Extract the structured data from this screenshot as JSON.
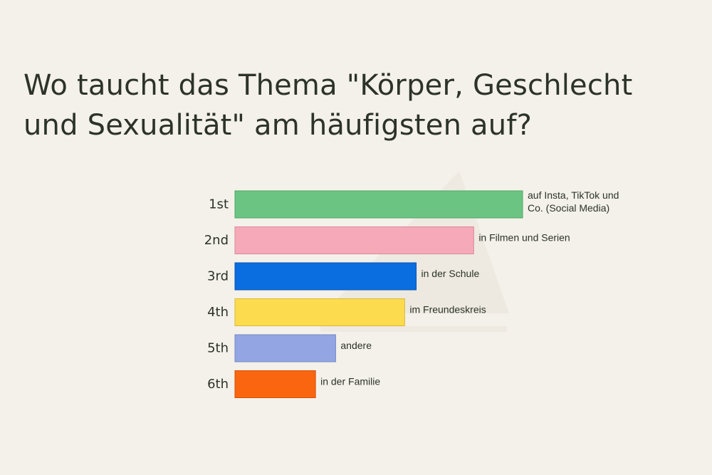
{
  "chart_data": {
    "type": "bar",
    "orientation": "horizontal",
    "title": "Wo taucht das Thema \"Körper, Geschlecht und Sexualität\" am häufigsten auf?",
    "ranks": [
      "1st",
      "2nd",
      "3rd",
      "4th",
      "5th",
      "6th"
    ],
    "categories": [
      "auf Insta, TikTok und Co. (Social Media)",
      "in Filmen und Serien",
      "in der Schule",
      "im Freundeskreis",
      "andere",
      "in der Familie"
    ],
    "category_label_lines": [
      [
        "auf Insta, TikTok und",
        "Co. (Social Media)"
      ],
      [
        "in Filmen und Serien"
      ],
      [
        "in der Schule"
      ],
      [
        "im Freundeskreis"
      ],
      [
        "andere"
      ],
      [
        "in der Familie"
      ]
    ],
    "values": [
      100,
      83,
      63,
      59,
      35,
      28
    ],
    "xlim": [
      0,
      100
    ],
    "grid": false,
    "colors": [
      "#6cc483",
      "#f6a9b9",
      "#0a6ee0",
      "#fcdc4e",
      "#93a6e3",
      "#fa650f"
    ],
    "border_colors": [
      "#4fa866",
      "#d98a9b",
      "#0954b0",
      "#d8b93a",
      "#7588c5",
      "#d44f05"
    ]
  },
  "background_color": "#f4f1ea"
}
